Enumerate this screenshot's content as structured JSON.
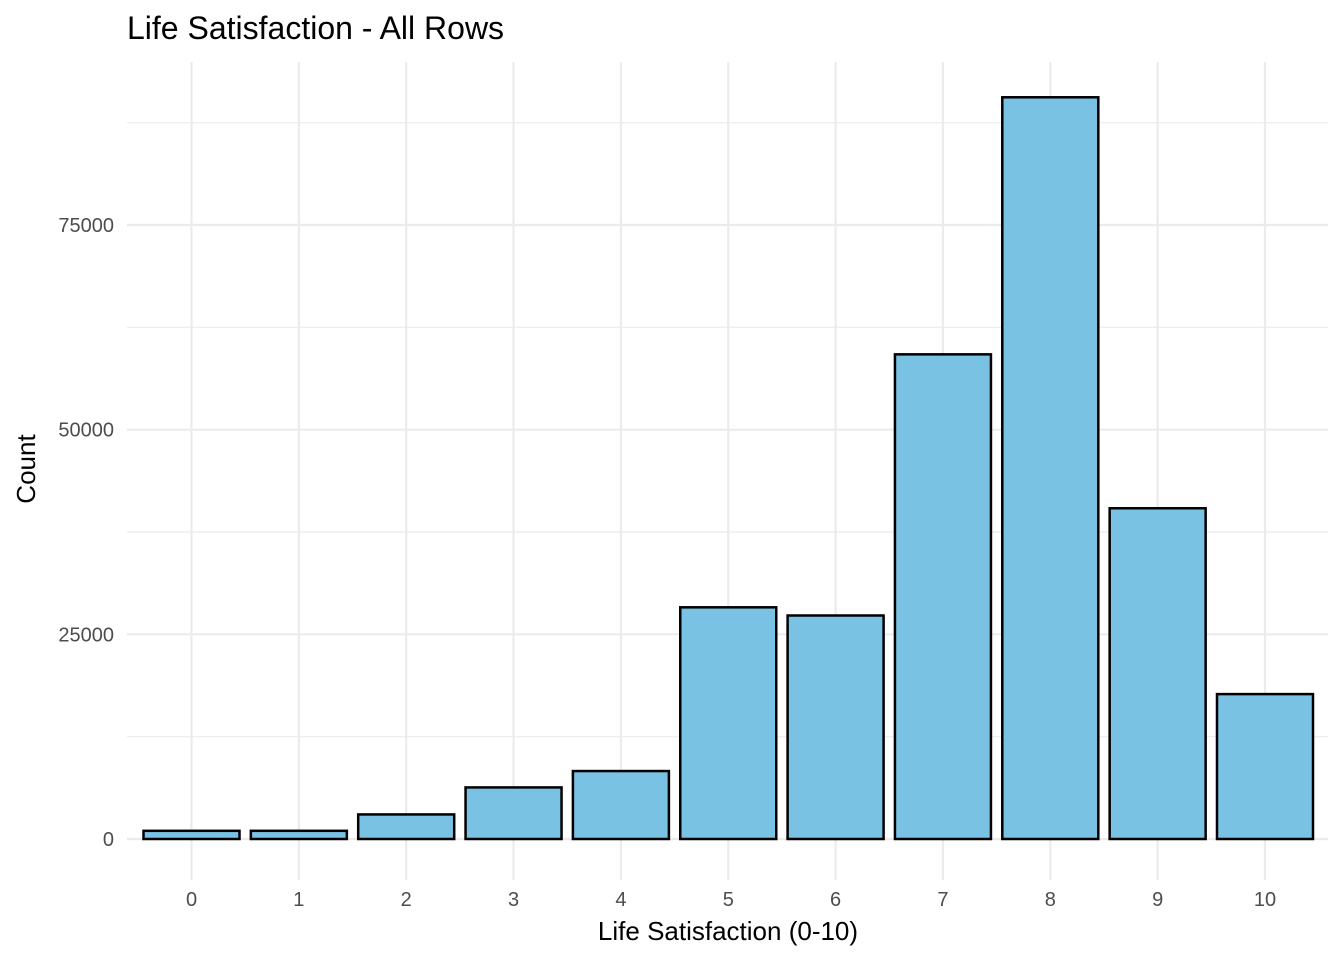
{
  "chart_data": {
    "type": "bar",
    "title": "Life Satisfaction - All Rows",
    "xlabel": "Life Satisfaction (0-10)",
    "ylabel": "Count",
    "categories": [
      "0",
      "1",
      "2",
      "3",
      "4",
      "5",
      "6",
      "7",
      "8",
      "9",
      "10"
    ],
    "values": [
      1000,
      1000,
      3000,
      6300,
      8300,
      28300,
      27300,
      59200,
      90600,
      40400,
      17700
    ],
    "y_ticks": [
      "0",
      "25000",
      "50000",
      "75000"
    ],
    "ylim": [
      0,
      95000
    ],
    "grid": true,
    "legend": "none",
    "colors": {
      "bar_fill": "#7AC2E4",
      "bar_stroke": "#000000",
      "grid": "#EBEBEB",
      "background": "#FFFFFF"
    }
  }
}
